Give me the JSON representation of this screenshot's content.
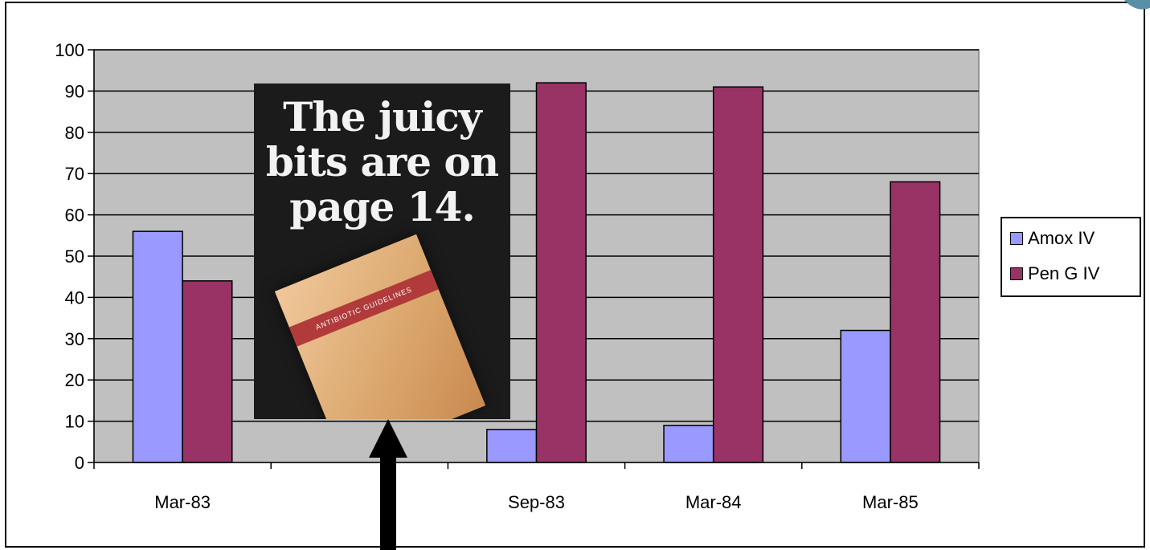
{
  "colors": {
    "amox": "#9999ff",
    "pen": "#993366",
    "plot_bg": "#c0c0c0"
  },
  "chart_data": {
    "type": "bar",
    "categories": [
      "Mar-83",
      "",
      "Sep-83",
      "Mar-84",
      "Mar-85"
    ],
    "series": [
      {
        "name": "Amox IV",
        "values": [
          56,
          null,
          8,
          9,
          32
        ]
      },
      {
        "name": "Pen G IV",
        "values": [
          44,
          null,
          92,
          91,
          68
        ]
      }
    ],
    "ylim": [
      0,
      100
    ],
    "yticks": [
      "0",
      "10",
      "20",
      "30",
      "40",
      "50",
      "60",
      "70",
      "80",
      "90",
      "100"
    ],
    "grid": true,
    "legend_position": "right"
  },
  "inset": {
    "headline": [
      "The juicy",
      "bits are on",
      "page 14."
    ],
    "book_label": "ANTIBIOTIC GUIDELINES",
    "icon": "arrow-up-icon"
  }
}
